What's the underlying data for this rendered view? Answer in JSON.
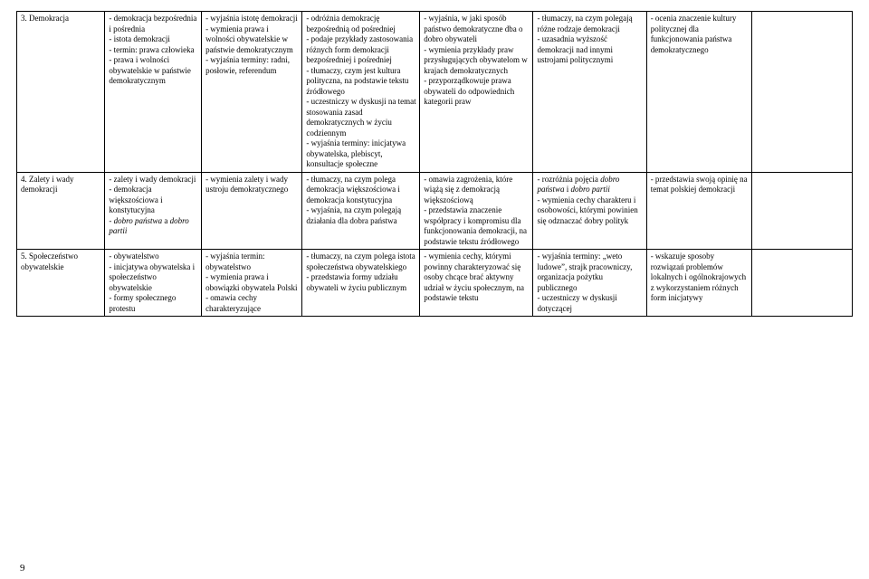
{
  "pageNumber": "9",
  "table": {
    "columns": 8,
    "rows": [
      {
        "cells": [
          "3. Demokracja",
          "- demokracja bezpośrednia i pośrednia\n- istota demokracji\n- termin: prawa człowieka\n- prawa i wolności obywatelskie w państwie demokratycznym",
          "- wyjaśnia istotę demokracji\n- wymienia prawa i wolności obywatelskie w państwie demokratycznym\n- wyjaśnia terminy: radni, posłowie, referendum",
          "- odróżnia demokrację bezpośrednią od pośredniej\n- podaje przykłady zastosowania różnych form demokracji bezpośredniej i pośredniej\n- tłumaczy, czym jest kultura polityczna, na podstawie tekstu źródłowego\n- uczestniczy w dyskusji na temat stosowania zasad demokratycznych w życiu codziennym\n- wyjaśnia terminy: inicjatywa obywatelska, plebiscyt, konsultacje społeczne",
          "- wyjaśnia, w jaki sposób państwo demokratyczne dba o dobro obywateli\n- wymienia przykłady praw przysługujących obywatelom w krajach demokratycznych\n- przyporządkowuje prawa obywateli do odpowiednich kategorii praw",
          "- tłumaczy, na czym polegają różne rodzaje demokracji\n- uzasadnia wyższość demokracji nad innymi ustrojami politycznymi",
          "- ocenia znaczenie kultury politycznej dla funkcjonowania państwa demokratycznego",
          ""
        ]
      },
      {
        "cells": [
          "4. Zalety i wady demokracji",
          "- zalety i wady demokracji\n- demokracja większościowa i konstytucyjna\n- dobro państwa a dobro partii",
          "- wymienia zalety i wady ustroju demokratycznego",
          "- tłumaczy, na czym polega demokracja większościowa i demokracja konstytucyjna\n- wyjaśnia, na czym polegają działania dla dobra państwa",
          "- omawia zagrożenia, które wiążą się z demokracją większościową\n- przedstawia znaczenie współpracy i kompromisu dla funkcjonowania demokracji, na podstawie tekstu źródłowego",
          "- rozróżnia pojęcia dobro państwa i dobro partii\n- wymienia cechy charakteru i osobowości, którymi powinien się odznaczać dobry polityk",
          "- przedstawia swoją opinię na temat polskiej demokracji",
          ""
        ]
      },
      {
        "cells": [
          "5. Społeczeństwo obywatelskie",
          "- obywatelstwo\n- inicjatywa obywatelska i społeczeństwo obywatelskie\n- formy społecznego protestu",
          "- wyjaśnia termin: obywatelstwo\n- wymienia prawa i obowiązki obywatela Polski\n- omawia cechy charakteryzujące",
          "- tłumaczy, na czym polega istota społeczeństwa obywatelskiego\n- przedstawia formy udziału obywateli w życiu publicznym",
          "- wymienia cechy, którymi powinny charakteryzować się osoby chcące brać aktywny udział w życiu społecznym, na podstawie tekstu",
          "- wyjaśnia terminy: „weto ludowe”, strajk pracowniczy, organizacja pożytku publicznego\n- uczestniczy w dyskusji dotyczącej",
          "- wskazuje sposoby rozwiązań problemów lokalnych i ogólnokrajowych z wykorzystaniem różnych form inicjatywy",
          ""
        ]
      }
    ]
  },
  "styling": {
    "italicPhrases": [
      "dobro państwa",
      "dobro partii"
    ],
    "fontFamily": "Times New Roman",
    "fontSizePt": 9,
    "borderColor": "#000000",
    "backgroundColor": "#ffffff",
    "textColor": "#000000",
    "columnWidthsPct": [
      10.5,
      11.5,
      12,
      14,
      13.5,
      13.5,
      12.5,
      12
    ]
  }
}
